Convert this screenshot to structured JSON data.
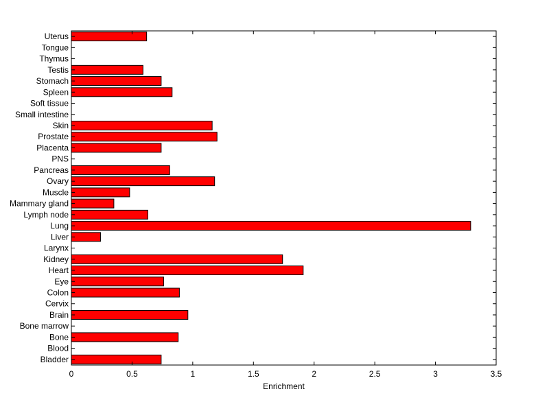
{
  "chart_data": {
    "type": "bar",
    "orientation": "horizontal",
    "title": "",
    "xlabel": "Enrichment",
    "ylabel": "",
    "xlim": [
      0,
      3.5
    ],
    "xticks": [
      0,
      0.5,
      1,
      1.5,
      2,
      2.5,
      3,
      3.5
    ],
    "xtick_labels": [
      "0",
      "0.5",
      "1",
      "1.5",
      "2",
      "2.5",
      "3",
      "3.5"
    ],
    "grid": false,
    "bar_color": "#ff0000",
    "categories": [
      "Bladder",
      "Blood",
      "Bone",
      "Bone marrow",
      "Brain",
      "Cervix",
      "Colon",
      "Eye",
      "Heart",
      "Kidney",
      "Larynx",
      "Liver",
      "Lung",
      "Lymph node",
      "Mammary gland",
      "Muscle",
      "Ovary",
      "Pancreas",
      "PNS",
      "Placenta",
      "Prostate",
      "Skin",
      "Small intestine",
      "Soft tissue",
      "Spleen",
      "Stomach",
      "Testis",
      "Thymus",
      "Tongue",
      "Uterus"
    ],
    "values": [
      0.74,
      0,
      0.88,
      0,
      0.96,
      0,
      0.89,
      0.76,
      1.91,
      1.74,
      0,
      0.24,
      3.29,
      0.63,
      0.35,
      0.48,
      1.18,
      0.81,
      0,
      0.74,
      1.2,
      1.16,
      0,
      0,
      0.83,
      0.74,
      0.59,
      0,
      0,
      0.62
    ]
  }
}
